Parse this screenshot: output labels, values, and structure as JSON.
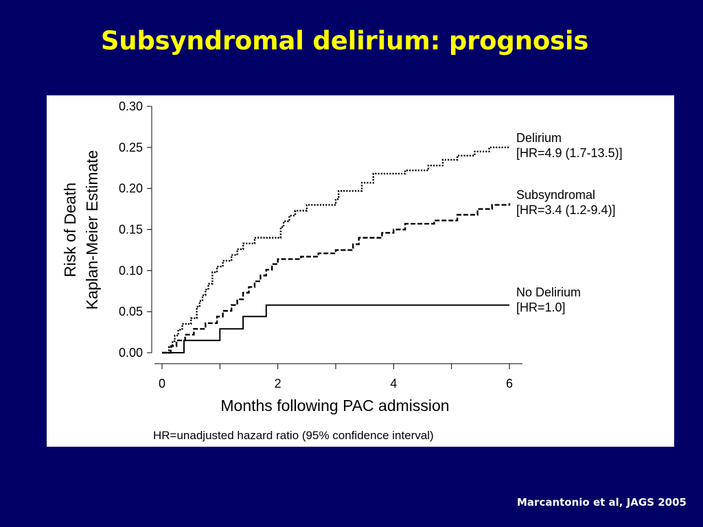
{
  "slide": {
    "title": "Subsyndromal delirium: prognosis",
    "citation": "Marcantonio et al, JAGS 2005",
    "background_color": "#000066",
    "title_color": "#ffff00"
  },
  "chart_data": {
    "type": "line",
    "step": true,
    "xlabel": "Months following PAC admission",
    "ylabel_lines": [
      "Risk of Death",
      "Kaplan-Meier Estimate"
    ],
    "footnote": "HR=unadjusted hazard ratio (95% confidence interval)",
    "xlim": [
      0,
      6
    ],
    "ylim": [
      0,
      0.3
    ],
    "xticks": [
      0,
      2,
      4,
      6
    ],
    "xticks_minor": [
      1,
      3,
      5
    ],
    "yticks": [
      "0.00",
      "0.05",
      "0.10",
      "0.15",
      "0.20",
      "0.25",
      "0.30"
    ],
    "grid": false,
    "legend": "inline-right",
    "series": [
      {
        "name": "Delirium",
        "label_lines": [
          "Delirium",
          "[HR=4.9 (1.7-13.5)]"
        ],
        "dash": "dotted",
        "points": [
          [
            0,
            0
          ],
          [
            0.12,
            0.007
          ],
          [
            0.18,
            0.014
          ],
          [
            0.22,
            0.021
          ],
          [
            0.28,
            0.028
          ],
          [
            0.35,
            0.035
          ],
          [
            0.5,
            0.042
          ],
          [
            0.6,
            0.056
          ],
          [
            0.65,
            0.063
          ],
          [
            0.7,
            0.07
          ],
          [
            0.75,
            0.077
          ],
          [
            0.8,
            0.084
          ],
          [
            0.87,
            0.098
          ],
          [
            0.95,
            0.105
          ],
          [
            1.05,
            0.112
          ],
          [
            1.2,
            0.119
          ],
          [
            1.3,
            0.126
          ],
          [
            1.4,
            0.133
          ],
          [
            1.6,
            0.14
          ],
          [
            2.05,
            0.153
          ],
          [
            2.1,
            0.16
          ],
          [
            2.2,
            0.167
          ],
          [
            2.3,
            0.173
          ],
          [
            2.5,
            0.18
          ],
          [
            3.0,
            0.187
          ],
          [
            3.05,
            0.197
          ],
          [
            3.45,
            0.207
          ],
          [
            3.65,
            0.218
          ],
          [
            4.2,
            0.222
          ],
          [
            4.6,
            0.228
          ],
          [
            4.85,
            0.235
          ],
          [
            5.1,
            0.24
          ],
          [
            5.4,
            0.245
          ],
          [
            5.65,
            0.25
          ],
          [
            6.0,
            0.25
          ]
        ]
      },
      {
        "name": "Subsyndromal",
        "label_lines": [
          "Subsyndromal",
          "[HR=3.4 (1.2-9.4)]"
        ],
        "dash": "dashed",
        "points": [
          [
            0,
            0
          ],
          [
            0.15,
            0.008
          ],
          [
            0.25,
            0.015
          ],
          [
            0.4,
            0.022
          ],
          [
            0.55,
            0.029
          ],
          [
            0.75,
            0.036
          ],
          [
            0.95,
            0.044
          ],
          [
            1.05,
            0.051
          ],
          [
            1.2,
            0.058
          ],
          [
            1.3,
            0.065
          ],
          [
            1.4,
            0.073
          ],
          [
            1.5,
            0.08
          ],
          [
            1.6,
            0.087
          ],
          [
            1.7,
            0.094
          ],
          [
            1.8,
            0.101
          ],
          [
            1.9,
            0.108
          ],
          [
            2.0,
            0.114
          ],
          [
            2.4,
            0.117
          ],
          [
            2.7,
            0.121
          ],
          [
            3.0,
            0.125
          ],
          [
            3.3,
            0.132
          ],
          [
            3.4,
            0.14
          ],
          [
            3.8,
            0.146
          ],
          [
            4.0,
            0.15
          ],
          [
            4.2,
            0.157
          ],
          [
            4.7,
            0.161
          ],
          [
            5.1,
            0.168
          ],
          [
            5.45,
            0.175
          ],
          [
            5.7,
            0.18
          ],
          [
            6.0,
            0.182
          ]
        ]
      },
      {
        "name": "No Delirium",
        "label_lines": [
          "No Delirium",
          "[HR=1.0]"
        ],
        "dash": "solid",
        "points": [
          [
            0,
            0
          ],
          [
            0.38,
            0.0
          ],
          [
            0.38,
            0.015
          ],
          [
            1.0,
            0.015
          ],
          [
            1.0,
            0.029
          ],
          [
            1.4,
            0.029
          ],
          [
            1.4,
            0.044
          ],
          [
            1.8,
            0.044
          ],
          [
            1.8,
            0.058
          ],
          [
            6.0,
            0.058
          ]
        ]
      }
    ]
  }
}
